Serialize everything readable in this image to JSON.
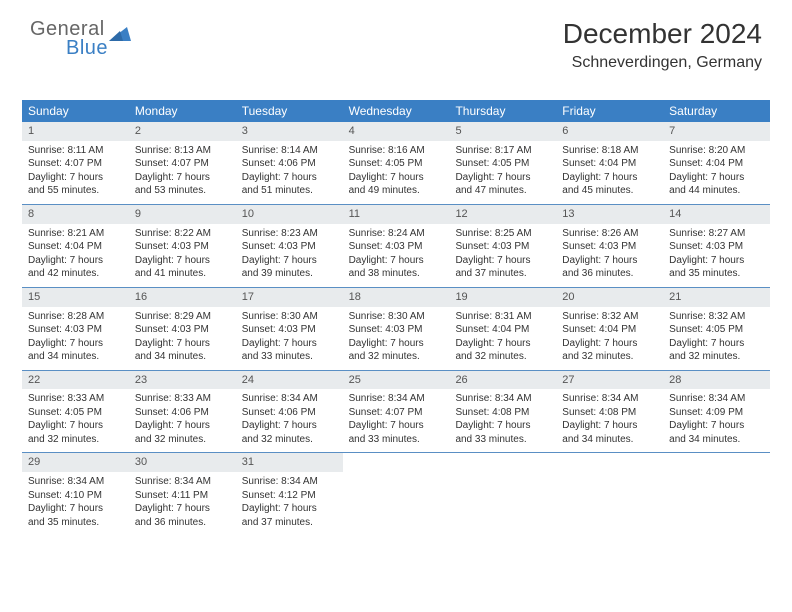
{
  "logo": {
    "text1": "General",
    "text2": "Blue"
  },
  "header": {
    "month_title": "December 2024",
    "location": "Schneverdingen, Germany"
  },
  "colors": {
    "header_bg": "#3a7fc4",
    "header_text": "#ffffff",
    "daynum_bg": "#e8ebed",
    "daynum_text": "#555555",
    "row_border": "#5a8fc4",
    "body_text": "#333333",
    "logo_gray": "#666666",
    "logo_blue": "#3a7fc4"
  },
  "weekdays": [
    "Sunday",
    "Monday",
    "Tuesday",
    "Wednesday",
    "Thursday",
    "Friday",
    "Saturday"
  ],
  "weeks": [
    [
      {
        "n": "1",
        "sr": "Sunrise: 8:11 AM",
        "ss": "Sunset: 4:07 PM",
        "d1": "Daylight: 7 hours",
        "d2": "and 55 minutes."
      },
      {
        "n": "2",
        "sr": "Sunrise: 8:13 AM",
        "ss": "Sunset: 4:07 PM",
        "d1": "Daylight: 7 hours",
        "d2": "and 53 minutes."
      },
      {
        "n": "3",
        "sr": "Sunrise: 8:14 AM",
        "ss": "Sunset: 4:06 PM",
        "d1": "Daylight: 7 hours",
        "d2": "and 51 minutes."
      },
      {
        "n": "4",
        "sr": "Sunrise: 8:16 AM",
        "ss": "Sunset: 4:05 PM",
        "d1": "Daylight: 7 hours",
        "d2": "and 49 minutes."
      },
      {
        "n": "5",
        "sr": "Sunrise: 8:17 AM",
        "ss": "Sunset: 4:05 PM",
        "d1": "Daylight: 7 hours",
        "d2": "and 47 minutes."
      },
      {
        "n": "6",
        "sr": "Sunrise: 8:18 AM",
        "ss": "Sunset: 4:04 PM",
        "d1": "Daylight: 7 hours",
        "d2": "and 45 minutes."
      },
      {
        "n": "7",
        "sr": "Sunrise: 8:20 AM",
        "ss": "Sunset: 4:04 PM",
        "d1": "Daylight: 7 hours",
        "d2": "and 44 minutes."
      }
    ],
    [
      {
        "n": "8",
        "sr": "Sunrise: 8:21 AM",
        "ss": "Sunset: 4:04 PM",
        "d1": "Daylight: 7 hours",
        "d2": "and 42 minutes."
      },
      {
        "n": "9",
        "sr": "Sunrise: 8:22 AM",
        "ss": "Sunset: 4:03 PM",
        "d1": "Daylight: 7 hours",
        "d2": "and 41 minutes."
      },
      {
        "n": "10",
        "sr": "Sunrise: 8:23 AM",
        "ss": "Sunset: 4:03 PM",
        "d1": "Daylight: 7 hours",
        "d2": "and 39 minutes."
      },
      {
        "n": "11",
        "sr": "Sunrise: 8:24 AM",
        "ss": "Sunset: 4:03 PM",
        "d1": "Daylight: 7 hours",
        "d2": "and 38 minutes."
      },
      {
        "n": "12",
        "sr": "Sunrise: 8:25 AM",
        "ss": "Sunset: 4:03 PM",
        "d1": "Daylight: 7 hours",
        "d2": "and 37 minutes."
      },
      {
        "n": "13",
        "sr": "Sunrise: 8:26 AM",
        "ss": "Sunset: 4:03 PM",
        "d1": "Daylight: 7 hours",
        "d2": "and 36 minutes."
      },
      {
        "n": "14",
        "sr": "Sunrise: 8:27 AM",
        "ss": "Sunset: 4:03 PM",
        "d1": "Daylight: 7 hours",
        "d2": "and 35 minutes."
      }
    ],
    [
      {
        "n": "15",
        "sr": "Sunrise: 8:28 AM",
        "ss": "Sunset: 4:03 PM",
        "d1": "Daylight: 7 hours",
        "d2": "and 34 minutes."
      },
      {
        "n": "16",
        "sr": "Sunrise: 8:29 AM",
        "ss": "Sunset: 4:03 PM",
        "d1": "Daylight: 7 hours",
        "d2": "and 34 minutes."
      },
      {
        "n": "17",
        "sr": "Sunrise: 8:30 AM",
        "ss": "Sunset: 4:03 PM",
        "d1": "Daylight: 7 hours",
        "d2": "and 33 minutes."
      },
      {
        "n": "18",
        "sr": "Sunrise: 8:30 AM",
        "ss": "Sunset: 4:03 PM",
        "d1": "Daylight: 7 hours",
        "d2": "and 32 minutes."
      },
      {
        "n": "19",
        "sr": "Sunrise: 8:31 AM",
        "ss": "Sunset: 4:04 PM",
        "d1": "Daylight: 7 hours",
        "d2": "and 32 minutes."
      },
      {
        "n": "20",
        "sr": "Sunrise: 8:32 AM",
        "ss": "Sunset: 4:04 PM",
        "d1": "Daylight: 7 hours",
        "d2": "and 32 minutes."
      },
      {
        "n": "21",
        "sr": "Sunrise: 8:32 AM",
        "ss": "Sunset: 4:05 PM",
        "d1": "Daylight: 7 hours",
        "d2": "and 32 minutes."
      }
    ],
    [
      {
        "n": "22",
        "sr": "Sunrise: 8:33 AM",
        "ss": "Sunset: 4:05 PM",
        "d1": "Daylight: 7 hours",
        "d2": "and 32 minutes."
      },
      {
        "n": "23",
        "sr": "Sunrise: 8:33 AM",
        "ss": "Sunset: 4:06 PM",
        "d1": "Daylight: 7 hours",
        "d2": "and 32 minutes."
      },
      {
        "n": "24",
        "sr": "Sunrise: 8:34 AM",
        "ss": "Sunset: 4:06 PM",
        "d1": "Daylight: 7 hours",
        "d2": "and 32 minutes."
      },
      {
        "n": "25",
        "sr": "Sunrise: 8:34 AM",
        "ss": "Sunset: 4:07 PM",
        "d1": "Daylight: 7 hours",
        "d2": "and 33 minutes."
      },
      {
        "n": "26",
        "sr": "Sunrise: 8:34 AM",
        "ss": "Sunset: 4:08 PM",
        "d1": "Daylight: 7 hours",
        "d2": "and 33 minutes."
      },
      {
        "n": "27",
        "sr": "Sunrise: 8:34 AM",
        "ss": "Sunset: 4:08 PM",
        "d1": "Daylight: 7 hours",
        "d2": "and 34 minutes."
      },
      {
        "n": "28",
        "sr": "Sunrise: 8:34 AM",
        "ss": "Sunset: 4:09 PM",
        "d1": "Daylight: 7 hours",
        "d2": "and 34 minutes."
      }
    ],
    [
      {
        "n": "29",
        "sr": "Sunrise: 8:34 AM",
        "ss": "Sunset: 4:10 PM",
        "d1": "Daylight: 7 hours",
        "d2": "and 35 minutes."
      },
      {
        "n": "30",
        "sr": "Sunrise: 8:34 AM",
        "ss": "Sunset: 4:11 PM",
        "d1": "Daylight: 7 hours",
        "d2": "and 36 minutes."
      },
      {
        "n": "31",
        "sr": "Sunrise: 8:34 AM",
        "ss": "Sunset: 4:12 PM",
        "d1": "Daylight: 7 hours",
        "d2": "and 37 minutes."
      },
      null,
      null,
      null,
      null
    ]
  ]
}
